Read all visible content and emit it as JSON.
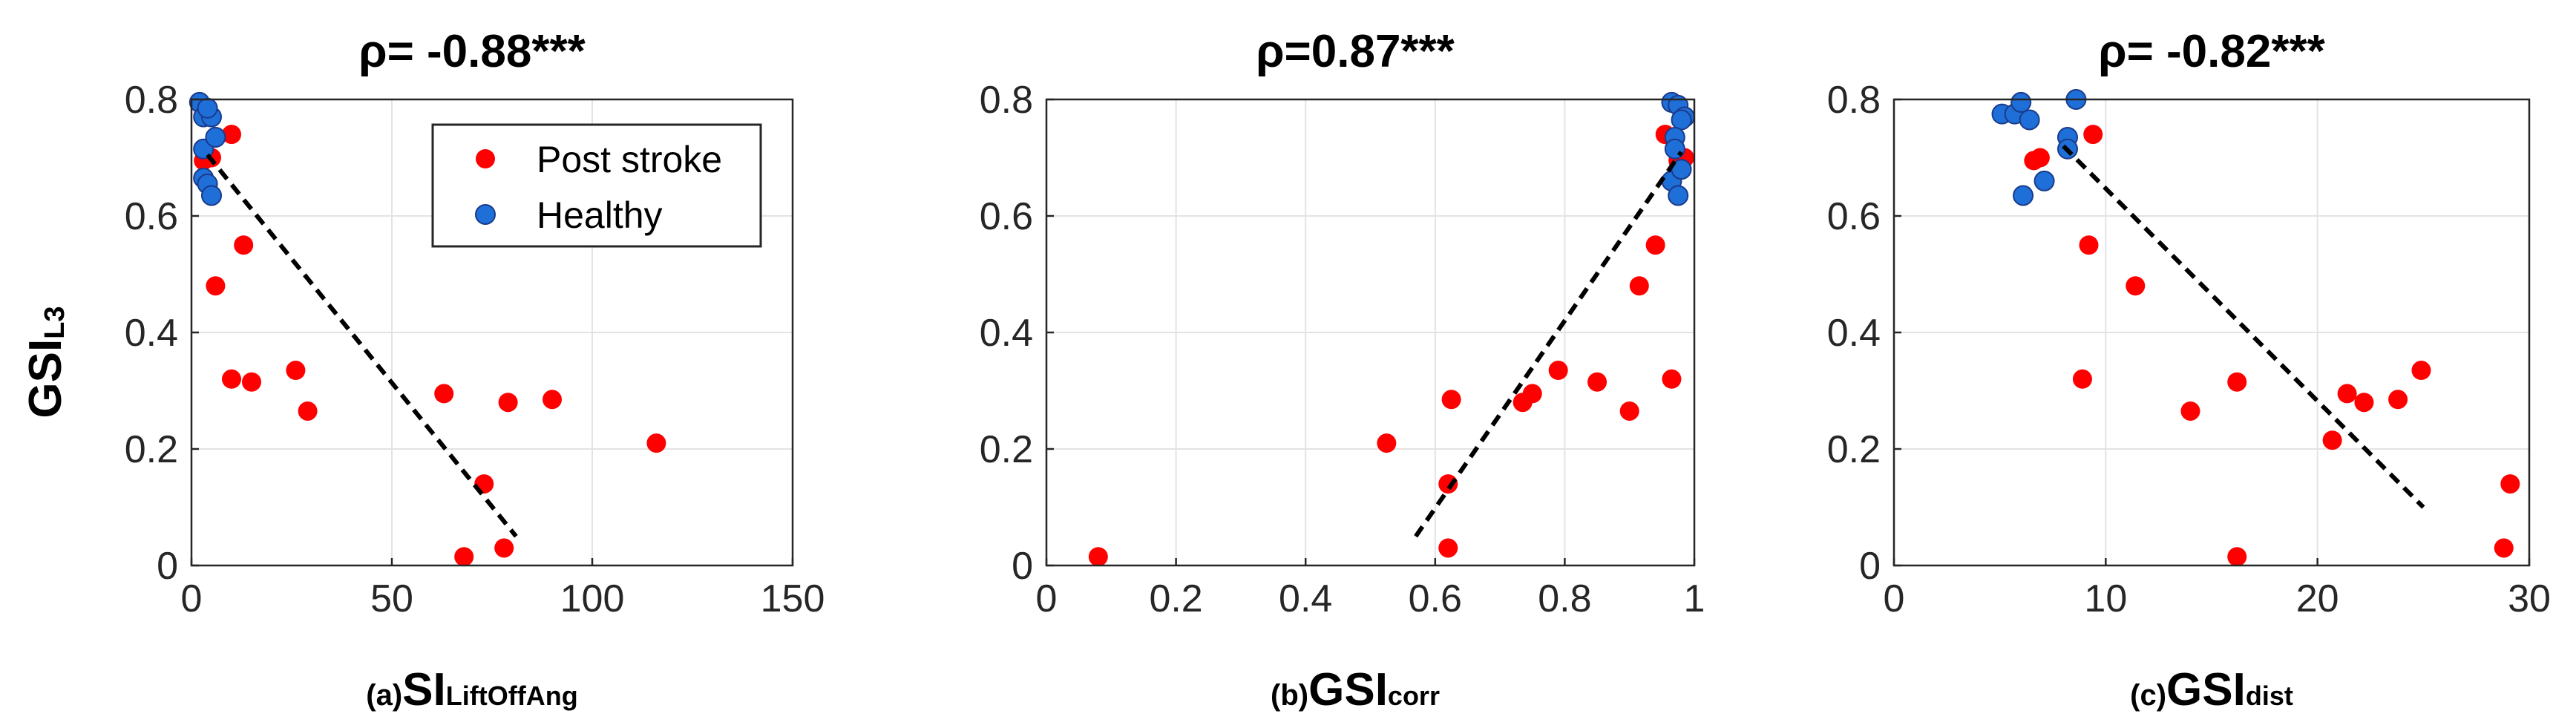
{
  "ylabel": {
    "main": "GSI",
    "sub": "L3"
  },
  "colors": {
    "post_stroke": "#ff0000",
    "healthy": "#1f6fd8",
    "healthy_edge": "#1a3a8a",
    "grid": "#e3e3e3",
    "fit": "#000000"
  },
  "legend": {
    "post_stroke": "Post stroke",
    "healthy": "Healthy",
    "location": "top-right of panel (a)"
  },
  "chart_data": [
    {
      "type": "scatter",
      "title": "ρ= -0.88***",
      "xlabel": {
        "prefix": "(a)",
        "main": "SI",
        "sub": "LiftOffAng"
      },
      "xlim": [
        0,
        150
      ],
      "ylim": [
        0,
        0.8
      ],
      "xticks": [
        0,
        50,
        100,
        150
      ],
      "xtick_labels": [
        "0",
        "50",
        "100",
        "150"
      ],
      "yticks": [
        0,
        0.2,
        0.4,
        0.6,
        0.8
      ],
      "ytick_labels": [
        "0",
        "0.2",
        "0.4",
        "0.6",
        "0.8"
      ],
      "grid": true,
      "post_stroke": {
        "x": [
          68,
          78,
          73,
          116,
          79,
          63,
          90,
          29,
          15,
          10,
          26,
          6,
          13,
          3,
          10,
          5
        ],
        "y": [
          0.015,
          0.03,
          0.14,
          0.21,
          0.28,
          0.295,
          0.285,
          0.265,
          0.315,
          0.32,
          0.335,
          0.48,
          0.55,
          0.695,
          0.74,
          0.7
        ]
      },
      "healthy": {
        "x": [
          2,
          3,
          5,
          4,
          3,
          6,
          3,
          4,
          5
        ],
        "y": [
          0.795,
          0.77,
          0.77,
          0.785,
          0.715,
          0.735,
          0.665,
          0.655,
          0.635
        ]
      },
      "fit": {
        "x": [
          4,
          81
        ],
        "y": [
          0.705,
          0.05
        ]
      }
    },
    {
      "type": "scatter",
      "title": "ρ=0.87***",
      "xlabel": {
        "prefix": "(b)",
        "main": "GSI",
        "sub": "corr"
      },
      "xlim": [
        0,
        1
      ],
      "ylim": [
        0,
        0.8
      ],
      "xticks": [
        0,
        0.2,
        0.4,
        0.6,
        0.8,
        1
      ],
      "xtick_labels": [
        "0",
        "0.2",
        "0.4",
        "0.6",
        "0.8",
        "1"
      ],
      "yticks": [
        0,
        0.2,
        0.4,
        0.6,
        0.8
      ],
      "ytick_labels": [
        "0",
        "0.2",
        "0.4",
        "0.6",
        "0.8"
      ],
      "grid": true,
      "post_stroke": {
        "x": [
          0.08,
          0.525,
          0.62,
          0.62,
          0.625,
          0.735,
          0.75,
          0.79,
          0.85,
          0.9,
          0.915,
          0.94,
          0.965,
          0.955,
          0.975,
          0.985
        ],
        "y": [
          0.015,
          0.21,
          0.03,
          0.14,
          0.285,
          0.28,
          0.295,
          0.335,
          0.315,
          0.265,
          0.48,
          0.55,
          0.32,
          0.74,
          0.695,
          0.7
        ]
      },
      "healthy": {
        "x": [
          0.965,
          0.975,
          0.985,
          0.98,
          0.97,
          0.97,
          0.965,
          0.975,
          0.98
        ],
        "y": [
          0.795,
          0.79,
          0.77,
          0.765,
          0.735,
          0.715,
          0.66,
          0.635,
          0.68
        ]
      },
      "fit": {
        "x": [
          0.57,
          0.98
        ],
        "y": [
          0.05,
          0.71
        ]
      }
    },
    {
      "type": "scatter",
      "title": "ρ= -0.82***",
      "xlabel": {
        "prefix": "(c)",
        "main": "GSI",
        "sub": "dist"
      },
      "xlim": [
        0,
        30
      ],
      "ylim": [
        0,
        0.8
      ],
      "xticks": [
        0,
        10,
        20,
        30
      ],
      "xtick_labels": [
        "0",
        "10",
        "20",
        "30"
      ],
      "yticks": [
        0,
        0.2,
        0.4,
        0.6,
        0.8
      ],
      "ytick_labels": [
        "0",
        "0.2",
        "0.4",
        "0.6",
        "0.8"
      ],
      "grid": true,
      "post_stroke": {
        "x": [
          16.2,
          28.8,
          29.1,
          20.7,
          22.2,
          21.4,
          23.8,
          14.0,
          16.2,
          8.9,
          24.9,
          11.4,
          9.2,
          6.6,
          9.4,
          6.9
        ],
        "y": [
          0.015,
          0.03,
          0.14,
          0.215,
          0.28,
          0.295,
          0.285,
          0.265,
          0.315,
          0.32,
          0.335,
          0.48,
          0.55,
          0.695,
          0.74,
          0.7
        ]
      },
      "healthy": {
        "x": [
          5.1,
          5.7,
          6.0,
          6.4,
          8.6,
          8.2,
          8.2,
          7.1,
          6.1
        ],
        "y": [
          0.775,
          0.775,
          0.795,
          0.765,
          0.8,
          0.735,
          0.715,
          0.66,
          0.635
        ]
      },
      "fit": {
        "x": [
          8.0,
          25.0
        ],
        "y": [
          0.72,
          0.1
        ]
      }
    }
  ]
}
